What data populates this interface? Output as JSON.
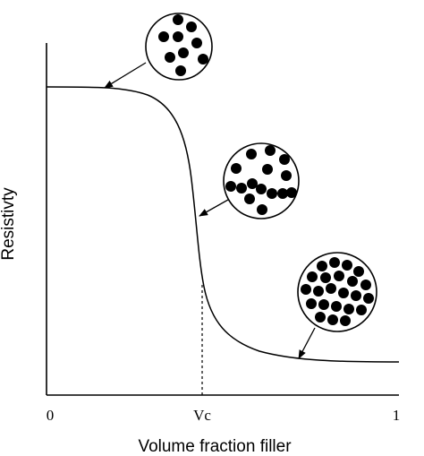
{
  "axes": {
    "y_label": "Resistivty",
    "x_label": "Volume fraction filler",
    "x_ticks": [
      "0",
      "Vc",
      "1"
    ]
  }
}
